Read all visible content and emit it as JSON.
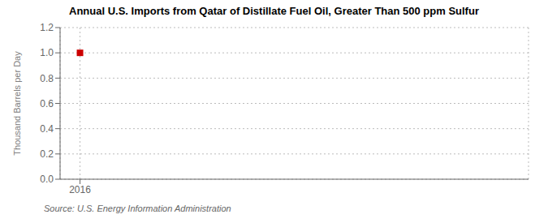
{
  "chart_data": {
    "type": "scatter",
    "title": "Annual U.S. Imports from Qatar of Distillate Fuel Oil, Greater Than 500 ppm Sulfur",
    "ylabel": "Thousand Barrels per Day",
    "annotations": [
      "Source: U.S. Energy Information Administration"
    ],
    "x": [
      2016
    ],
    "values": [
      1.0
    ],
    "color": "#cc0000",
    "marker": "square",
    "xlim": [
      2015.6,
      2025.0
    ],
    "xticks": [
      2016
    ],
    "ylim": [
      0.0,
      1.2
    ],
    "yticks": [
      {
        "value": 0.0,
        "label": "0.0"
      },
      0.2,
      0.4,
      0.6,
      0.8,
      {
        "value": 1.0,
        "label": "1.0"
      },
      1.2
    ],
    "grid": true
  }
}
